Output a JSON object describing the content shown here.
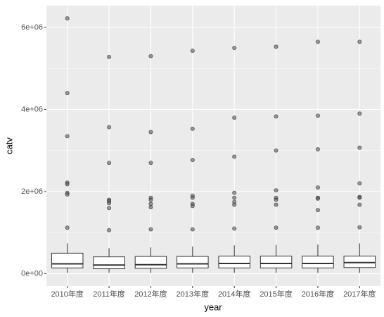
{
  "chart_data": {
    "type": "box",
    "x_label": "year",
    "y_label": "catv",
    "categories": [
      "2010年度",
      "2011年度",
      "2012年度",
      "2013年度",
      "2014年度",
      "2015年度",
      "2016年度",
      "2017年度"
    ],
    "boxes": [
      {
        "whislo": 20000,
        "q1": 140000,
        "med": 240000,
        "q3": 500000,
        "whishi": 740000,
        "outliers": [
          6220000,
          4400000,
          3350000,
          2220000,
          2180000,
          1970000,
          1930000,
          1120000
        ]
      },
      {
        "whislo": 20000,
        "q1": 120000,
        "med": 210000,
        "q3": 410000,
        "whishi": 620000,
        "outliers": [
          5280000,
          3570000,
          2700000,
          1800000,
          1770000,
          1720000,
          1600000,
          1060000
        ]
      },
      {
        "whislo": 20000,
        "q1": 130000,
        "med": 220000,
        "q3": 420000,
        "whishi": 640000,
        "outliers": [
          5300000,
          3450000,
          2700000,
          1850000,
          1800000,
          1700000,
          1620000,
          1080000
        ]
      },
      {
        "whislo": 20000,
        "q1": 140000,
        "med": 240000,
        "q3": 420000,
        "whishi": 660000,
        "outliers": [
          5430000,
          3530000,
          2770000,
          1900000,
          1850000,
          1700000,
          1650000,
          1080000
        ]
      },
      {
        "whislo": 20000,
        "q1": 140000,
        "med": 250000,
        "q3": 430000,
        "whishi": 690000,
        "outliers": [
          5500000,
          3800000,
          2850000,
          1970000,
          1850000,
          1750000,
          1680000,
          1100000
        ]
      },
      {
        "whislo": 20000,
        "q1": 140000,
        "med": 250000,
        "q3": 430000,
        "whishi": 700000,
        "outliers": [
          5530000,
          3830000,
          3000000,
          2030000,
          1850000,
          1800000,
          1680000,
          1120000
        ]
      },
      {
        "whislo": 20000,
        "q1": 140000,
        "med": 250000,
        "q3": 430000,
        "whishi": 710000,
        "outliers": [
          5650000,
          3850000,
          3030000,
          2100000,
          1850000,
          1830000,
          1550000,
          1120000
        ]
      },
      {
        "whislo": 20000,
        "q1": 150000,
        "med": 270000,
        "q3": 430000,
        "whishi": 740000,
        "outliers": [
          5650000,
          3900000,
          3070000,
          2200000,
          1870000,
          1850000,
          1680000,
          1130000
        ]
      }
    ],
    "ylim": [
      -300000,
      6530000
    ],
    "yticks": [
      {
        "value": 0,
        "label": "0e+00"
      },
      {
        "value": 2000000,
        "label": "2e+06"
      },
      {
        "value": 4000000,
        "label": "4e+06"
      },
      {
        "value": 6000000,
        "label": "6e+06"
      }
    ],
    "grid": true,
    "panel_color": "#ebebeb",
    "box_color": "#333333",
    "outlier_color": "#595959"
  }
}
